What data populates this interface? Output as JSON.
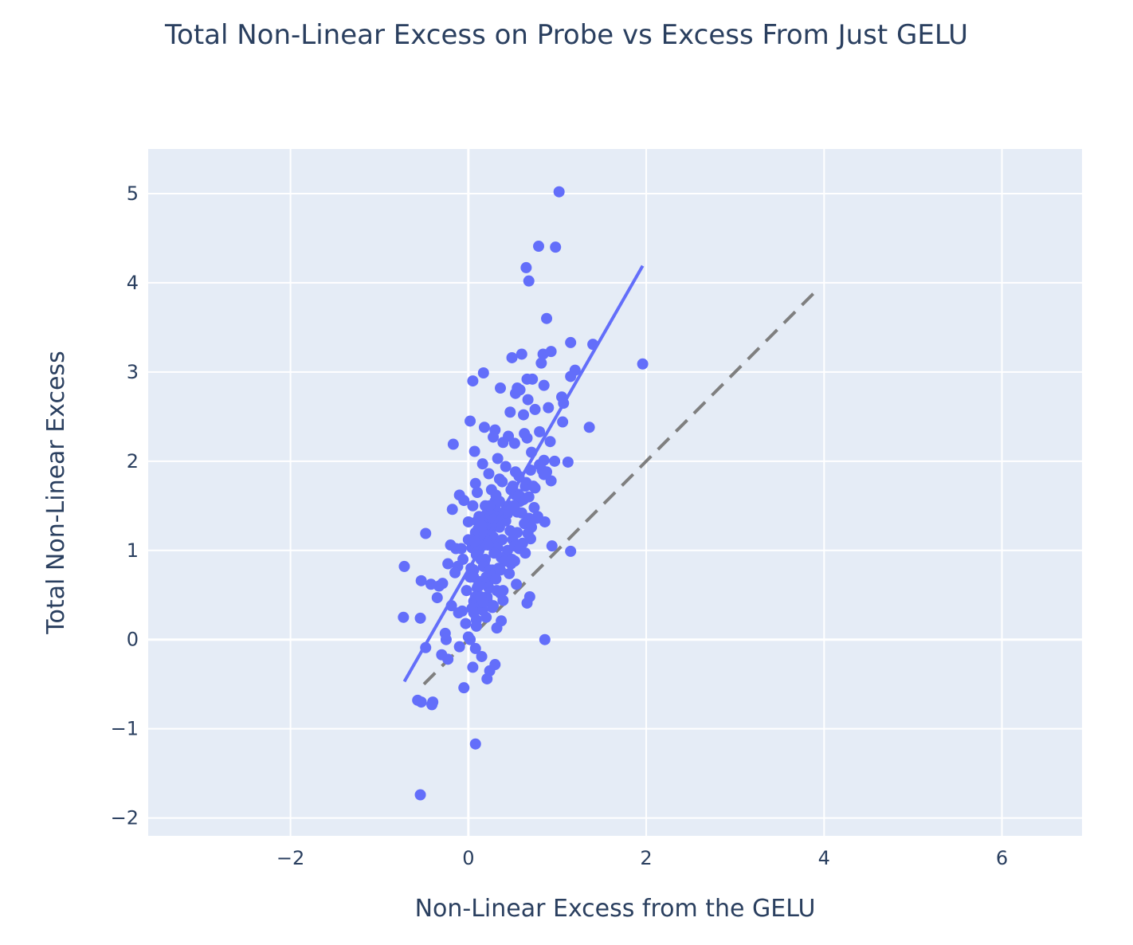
{
  "chart_data": {
    "type": "scatter",
    "title": "Total Non-Linear Excess on Probe vs Excess From Just GELU",
    "xlabel": "Non-Linear Excess from the GELU",
    "ylabel": "Total Non-Linear Excess",
    "xlim": [
      -3.6,
      6.9
    ],
    "ylim": [
      -2.2,
      5.5
    ],
    "xticks": [
      -2,
      0,
      2,
      4,
      6
    ],
    "yticks": [
      -2,
      -1,
      0,
      1,
      2,
      3,
      4,
      5
    ],
    "xtick_labels": [
      "−2",
      "0",
      "2",
      "4",
      "6"
    ],
    "ytick_labels": [
      "−2",
      "−1",
      "0",
      "1",
      "2",
      "3",
      "4",
      "5"
    ],
    "colors": {
      "points": "#636efa",
      "fit": "#636efa",
      "identity": "#7f7f7f",
      "plot_bg": "#e5ecf6",
      "grid": "#ffffff",
      "text": "#2a3f5f"
    },
    "fit_line": {
      "x": [
        -0.72,
        1.96
      ],
      "y": [
        -0.47,
        4.19
      ]
    },
    "identity_line": {
      "x": [
        -0.5,
        3.9
      ],
      "y": [
        -0.5,
        3.9
      ]
    },
    "points": {
      "x": [
        1.02,
        0.79,
        0.98,
        0.65,
        0.68,
        0.88,
        1.4,
        1.15,
        0.6,
        0.84,
        0.49,
        0.17,
        0.93,
        1.96,
        0.82,
        1.2,
        1.15,
        0.05,
        0.66,
        0.72,
        0.36,
        0.53,
        0.58,
        0.85,
        1.05,
        0.55,
        0.67,
        0.47,
        0.75,
        1.07,
        0.62,
        0.9,
        0.02,
        1.36,
        1.06,
        0.18,
        0.3,
        0.63,
        0.66,
        0.45,
        -0.17,
        0.07,
        0.8,
        0.92,
        0.39,
        0.52,
        0.28,
        0.71,
        1.12,
        0.16,
        0.85,
        0.97,
        0.33,
        0.23,
        0.42,
        0.7,
        0.53,
        0.57,
        0.08,
        0.35,
        0.5,
        0.38,
        0.64,
        0.26,
        0.1,
        0.31,
        -0.1,
        -0.18,
        0.55,
        0.78,
        0.86,
        0.68,
        0.12,
        0.22,
        0.05,
        0.19,
        0.44,
        -0.05,
        0.29,
        -0.48,
        0.0,
        -0.2,
        0.11,
        0.25,
        0.34,
        0.94,
        1.15,
        0.14,
        0.2,
        0.04,
        0.3,
        -0.08,
        0.41,
        0.52,
        0.48,
        -0.23,
        -0.12,
        -0.72,
        0.18,
        0.06,
        0.27,
        -0.15,
        0.02,
        -0.53,
        -0.33,
        -0.42,
        -0.29,
        0.1,
        0.22,
        0.36,
        0.54,
        0.69,
        0.66,
        0.21,
        0.39,
        0.28,
        0.06,
        0.11,
        0.16,
        -0.35,
        -0.19,
        -0.07,
        -0.73,
        -0.54,
        0.37,
        0.32,
        0.09,
        -0.26,
        -0.25,
        -0.48,
        0.0,
        -0.3,
        0.15,
        -0.1,
        0.02,
        0.86,
        0.08,
        0.24,
        0.3,
        0.21,
        0.05,
        -0.23,
        -0.05,
        -0.53,
        -0.57,
        -0.4,
        -0.41,
        0.08,
        -0.54,
        0.1,
        0.2,
        0.31,
        0.45,
        0.58,
        0.13,
        0.25,
        0.4,
        0.6,
        0.74,
        0.88,
        0.15,
        0.22,
        0.35,
        0.42,
        0.05,
        0.18,
        0.28,
        0.47,
        0.63,
        0.77,
        0.12,
        0.26,
        0.38,
        0.55,
        0.71,
        0.09,
        0.33,
        0.5,
        0.67,
        0.83,
        0.19,
        0.44,
        0.61,
        0.03,
        0.14,
        0.29,
        0.52,
        0.7,
        0.17,
        0.37,
        0.57,
        0.8,
        0.06,
        0.24,
        0.41,
        0.64,
        0.2,
        0.34,
        0.49,
        0.11,
        0.27,
        -0.02,
        0.13,
        0.36,
        0.08,
        0.23,
        0.46,
        0.16,
        0.32,
        -0.11,
        0.04,
        0.21,
        0.39,
        0.59,
        0.75,
        0.93,
        0.48,
        0.65,
        0.85,
        0.3,
        0.56,
        0.73,
        0.43,
        0.62,
        0.25,
        0.51,
        0.68,
        0.14,
        0.4,
        0.08,
        0.19,
        0.33,
        0.0,
        0.12,
        0.26,
        -0.14,
        0.07,
        0.18,
        -0.06,
        0.1,
        0.22,
        0.15,
        0.28,
        0.44,
        0.35,
        0.53,
        0.24,
        0.12,
        0.31,
        0.17,
        -0.03,
        0.09,
        0.2,
        0.06,
        0.27,
        0.14
      ],
      "y": [
        5.02,
        4.41,
        4.4,
        4.17,
        4.02,
        3.6,
        3.31,
        3.33,
        3.2,
        3.2,
        3.16,
        2.99,
        3.23,
        3.09,
        3.1,
        3.02,
        2.95,
        2.9,
        2.92,
        2.92,
        2.82,
        2.76,
        2.8,
        2.85,
        2.72,
        2.82,
        2.69,
        2.55,
        2.58,
        2.65,
        2.52,
        2.6,
        2.45,
        2.38,
        2.44,
        2.38,
        2.35,
        2.31,
        2.26,
        2.28,
        2.19,
        2.11,
        2.33,
        2.22,
        2.21,
        2.2,
        2.27,
        2.1,
        1.99,
        1.97,
        2.01,
        2.0,
        2.03,
        1.86,
        1.94,
        1.9,
        1.88,
        1.83,
        1.75,
        1.8,
        1.72,
        1.77,
        1.72,
        1.68,
        1.65,
        1.62,
        1.62,
        1.46,
        1.43,
        1.38,
        1.32,
        1.36,
        1.38,
        1.44,
        1.5,
        1.5,
        1.41,
        1.56,
        1.46,
        1.19,
        1.32,
        1.06,
        1.24,
        1.2,
        1.28,
        1.05,
        0.99,
        1.16,
        1.1,
        1.03,
        1.07,
        1.02,
        0.92,
        0.88,
        0.85,
        0.85,
        0.82,
        0.82,
        0.86,
        0.78,
        0.78,
        0.75,
        0.7,
        0.66,
        0.6,
        0.62,
        0.63,
        0.58,
        0.63,
        0.52,
        0.62,
        0.48,
        0.41,
        0.48,
        0.44,
        0.38,
        0.43,
        0.35,
        0.33,
        0.47,
        0.38,
        0.32,
        0.25,
        0.24,
        0.21,
        0.13,
        0.22,
        0.07,
        0.0,
        -0.09,
        0.03,
        -0.17,
        -0.19,
        -0.08,
        0.0,
        0.0,
        -0.1,
        -0.35,
        -0.28,
        -0.44,
        -0.31,
        -0.22,
        -0.54,
        -0.7,
        -0.68,
        -0.7,
        -0.73,
        -1.17,
        -1.74,
        1.33,
        1.4,
        1.45,
        1.5,
        1.55,
        1.25,
        1.3,
        1.35,
        1.42,
        1.48,
        1.88,
        1.15,
        1.2,
        1.26,
        1.33,
        1.1,
        1.06,
        1.15,
        1.22,
        1.3,
        1.36,
        1.0,
        1.07,
        1.12,
        1.2,
        1.26,
        0.95,
        1.03,
        1.12,
        1.19,
        1.9,
        0.9,
        1.0,
        1.08,
        0.8,
        0.9,
        0.97,
        1.05,
        1.13,
        0.82,
        0.92,
        1.02,
        1.96,
        0.7,
        0.78,
        0.88,
        0.97,
        0.7,
        0.8,
        0.9,
        0.6,
        0.72,
        0.55,
        0.65,
        0.78,
        0.48,
        0.58,
        0.74,
        0.42,
        0.55,
        0.3,
        0.35,
        0.45,
        0.55,
        1.6,
        1.7,
        1.78,
        1.68,
        1.76,
        1.85,
        1.55,
        1.63,
        1.72,
        1.48,
        1.57,
        1.4,
        1.5,
        1.6,
        1.32,
        1.42,
        1.2,
        1.28,
        1.38,
        1.12,
        1.2,
        1.28,
        1.02,
        1.1,
        1.18,
        0.9,
        0.98,
        1.06,
        1.28,
        1.35,
        1.45,
        1.55,
        1.62,
        1.5,
        0.6,
        0.68,
        0.42,
        0.18,
        0.15,
        0.25,
        0.3,
        0.36,
        0.48
      ]
    }
  }
}
